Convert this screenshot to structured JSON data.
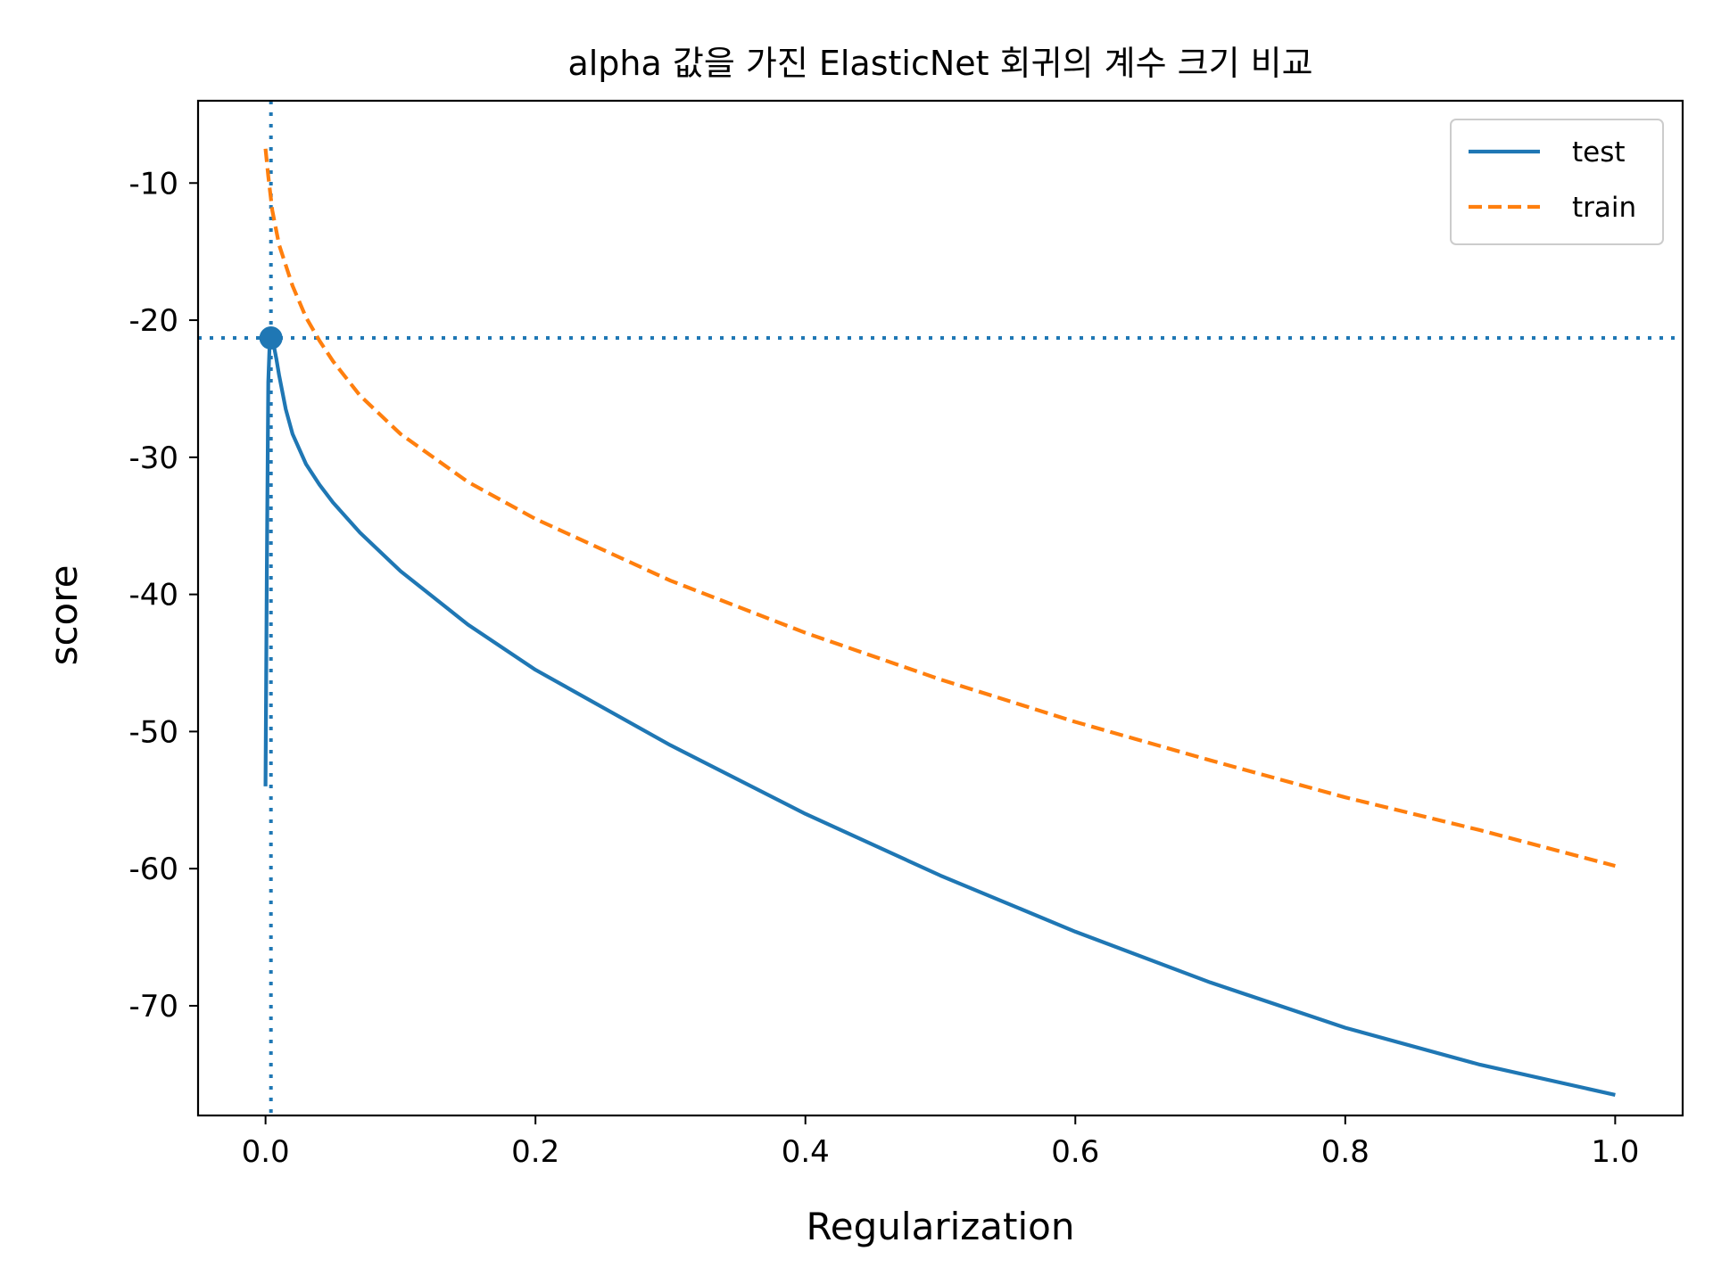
{
  "chart_data": {
    "type": "line",
    "title": "alpha 값을 가진 ElasticNet 회귀의 계수 크기 비교",
    "xlabel": "Regularization",
    "ylabel": "score",
    "xlim": [
      -0.05,
      1.05
    ],
    "ylim": [
      -78,
      -4
    ],
    "xticks": [
      0.0,
      0.2,
      0.4,
      0.6,
      0.8,
      1.0
    ],
    "xtick_labels": [
      "0.0",
      "0.2",
      "0.4",
      "0.6",
      "0.8",
      "1.0"
    ],
    "yticks": [
      -10,
      -20,
      -30,
      -40,
      -50,
      -60,
      -70
    ],
    "ytick_labels": [
      "-10",
      "-20",
      "-30",
      "-40",
      "-50",
      "-60",
      "-70"
    ],
    "grid": false,
    "legend_position": "top-right",
    "series": [
      {
        "name": "test",
        "color": "#1f77b4",
        "style": "solid",
        "x": [
          0.0,
          0.001,
          0.002,
          0.003,
          0.004,
          0.006,
          0.008,
          0.01,
          0.015,
          0.02,
          0.03,
          0.04,
          0.05,
          0.07,
          0.1,
          0.15,
          0.2,
          0.3,
          0.4,
          0.5,
          0.6,
          0.7,
          0.8,
          0.9,
          1.0
        ],
        "y": [
          -54.0,
          -38.0,
          -24.5,
          -21.8,
          -21.3,
          -21.8,
          -22.8,
          -24.0,
          -26.5,
          -28.3,
          -30.5,
          -32.0,
          -33.3,
          -35.5,
          -38.3,
          -42.2,
          -45.5,
          -51.0,
          -56.0,
          -60.5,
          -64.6,
          -68.3,
          -71.6,
          -74.3,
          -76.5
        ]
      },
      {
        "name": "train",
        "color": "#ff7f0e",
        "style": "dashed",
        "x": [
          0.0,
          0.002,
          0.005,
          0.01,
          0.02,
          0.03,
          0.04,
          0.05,
          0.07,
          0.1,
          0.15,
          0.2,
          0.3,
          0.4,
          0.5,
          0.6,
          0.7,
          0.8,
          0.9,
          1.0
        ],
        "y": [
          -7.5,
          -9.5,
          -12.0,
          -14.5,
          -17.5,
          -19.8,
          -21.5,
          -23.0,
          -25.5,
          -28.3,
          -31.8,
          -34.5,
          -39.0,
          -42.8,
          -46.2,
          -49.3,
          -52.1,
          -54.8,
          -57.2,
          -59.8
        ]
      }
    ],
    "reference_lines": {
      "best_x": 0.004,
      "best_y": -21.3,
      "color": "#1f77b4",
      "style": "dotted"
    },
    "best_point": {
      "x": 0.004,
      "y": -21.3,
      "color": "#1f77b4"
    }
  }
}
